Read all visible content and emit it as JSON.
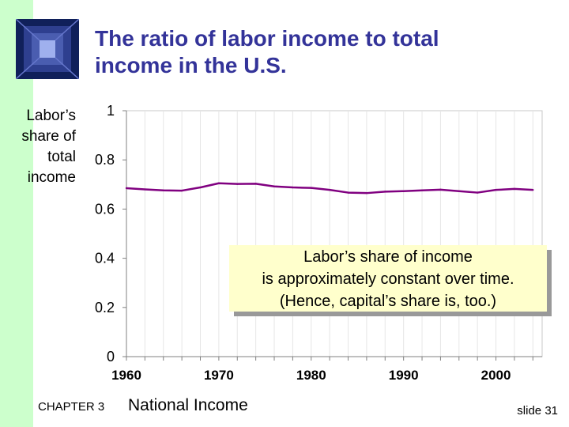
{
  "title_line1": "The ratio of labor income to total",
  "title_line2": "income in the U.S.",
  "y_axis_label": [
    "Labor’s",
    "share of",
    "total",
    "income"
  ],
  "callout": {
    "line1": "Labor’s share of income",
    "line2": "is approximately constant over time.",
    "line3": "(Hence, capital’s share is, too.)"
  },
  "footer": {
    "chapter": "CHAPTER 3",
    "title": "National Income",
    "slide": "slide 31"
  },
  "colors": {
    "title": "#333399",
    "left_bar": "#ccffcc",
    "line": "#800080",
    "callout_bg": "#ffffcc"
  },
  "logo_icon": "window-logo-icon",
  "chart_data": {
    "type": "line",
    "x": [
      1960,
      1962,
      1964,
      1966,
      1968,
      1970,
      1972,
      1974,
      1976,
      1978,
      1980,
      1982,
      1984,
      1986,
      1988,
      1990,
      1992,
      1994,
      1996,
      1998,
      2000,
      2002,
      2004
    ],
    "series": [
      {
        "values": [
          0.685,
          0.68,
          0.676,
          0.675,
          0.688,
          0.705,
          0.702,
          0.703,
          0.692,
          0.688,
          0.686,
          0.678,
          0.667,
          0.665,
          0.671,
          0.673,
          0.676,
          0.679,
          0.673,
          0.667,
          0.678,
          0.682,
          0.678
        ]
      }
    ],
    "xticks": [
      "1960",
      "1970",
      "1980",
      "1990",
      "2000"
    ],
    "yticks": [
      "0",
      "0.2",
      "0.4",
      "0.6",
      "0.8",
      "1"
    ],
    "xlim": [
      1960,
      2005
    ],
    "ylim": [
      0,
      1
    ],
    "xlabel": "",
    "ylabel": "Labor’s share of total income",
    "grid": "vertical"
  }
}
